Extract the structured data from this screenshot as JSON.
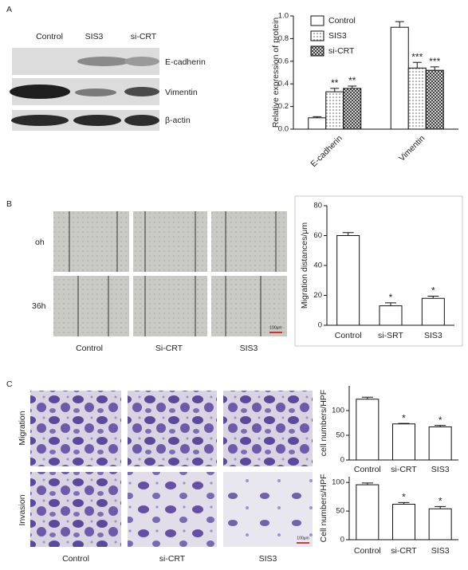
{
  "panel_letters": [
    "A",
    "B",
    "C"
  ],
  "blot": {
    "lanes": [
      "Control",
      "SIS3",
      "si-CRT"
    ],
    "proteins": [
      "E-cadherin",
      "Vimentin",
      "β-actin"
    ]
  },
  "wound": {
    "times": [
      "oh",
      "36h"
    ],
    "groups": [
      "Control",
      "Si-CRT",
      "SIS3"
    ],
    "scale_bar": "100μm"
  },
  "transwell": {
    "assays": [
      "Migration",
      "Invasion"
    ],
    "groups": [
      "Control",
      "si-CRT",
      "SIS3"
    ],
    "scale_bar": "100μm"
  },
  "chart_data": [
    {
      "type": "bar",
      "ylabel": "Relative expression of protein",
      "categories": [
        "E-cadherin",
        "Vimentin"
      ],
      "series": [
        {
          "name": "Control",
          "color": "#ffffff",
          "pattern": "none",
          "values": [
            0.1,
            0.9
          ],
          "errors": [
            0.01,
            0.05
          ],
          "significance": [
            null,
            null
          ]
        },
        {
          "name": "SIS3",
          "color": "#ffffff",
          "pattern": "dots",
          "values": [
            0.33,
            0.54
          ],
          "errors": [
            0.03,
            0.05
          ],
          "significance": [
            "**",
            "***"
          ]
        },
        {
          "name": "si-CRT",
          "color": "#ffffff",
          "pattern": "crosshatch",
          "values": [
            0.36,
            0.52
          ],
          "errors": [
            0.02,
            0.03
          ],
          "significance": [
            "**",
            "***"
          ]
        }
      ],
      "ylim": [
        0,
        1.0
      ],
      "yticks": [
        {
          "value": 0,
          "label": "0.0"
        },
        0.2,
        0.4,
        0.6,
        0.8,
        {
          "value": 1.0,
          "label": "1.0"
        }
      ],
      "legend": "upper left"
    },
    {
      "type": "bar",
      "ylabel": "Migration distances/μm",
      "categories": [
        "Control",
        "si-SRT",
        "SIS3"
      ],
      "values": [
        60,
        13,
        18
      ],
      "errors": [
        2,
        2,
        1.5
      ],
      "significance": [
        null,
        "*",
        "*"
      ],
      "color": "#ffffff",
      "ylim": [
        0,
        80
      ],
      "yticks": [
        0,
        20,
        40,
        60,
        80
      ]
    },
    {
      "type": "bar",
      "ylabel": "cell numbers/HPF",
      "categories": [
        "Control",
        "si-CRT",
        "SIS3"
      ],
      "values": [
        123,
        73,
        67
      ],
      "errors": [
        4,
        1,
        3
      ],
      "significance": [
        null,
        "*",
        "*"
      ],
      "color": "#ffffff",
      "ylim": [
        0,
        150
      ],
      "yticks": [
        0,
        50,
        100
      ]
    },
    {
      "type": "bar",
      "ylabel": "Cell numbers/HPF",
      "categories": [
        "Control",
        "si-CRT",
        "SIS3"
      ],
      "values": [
        96,
        62,
        54
      ],
      "errors": [
        3,
        3,
        4
      ],
      "significance": [
        null,
        "*",
        "*"
      ],
      "color": "#ffffff",
      "ylim": [
        0,
        110
      ],
      "yticks": [
        0,
        50,
        100
      ]
    }
  ]
}
